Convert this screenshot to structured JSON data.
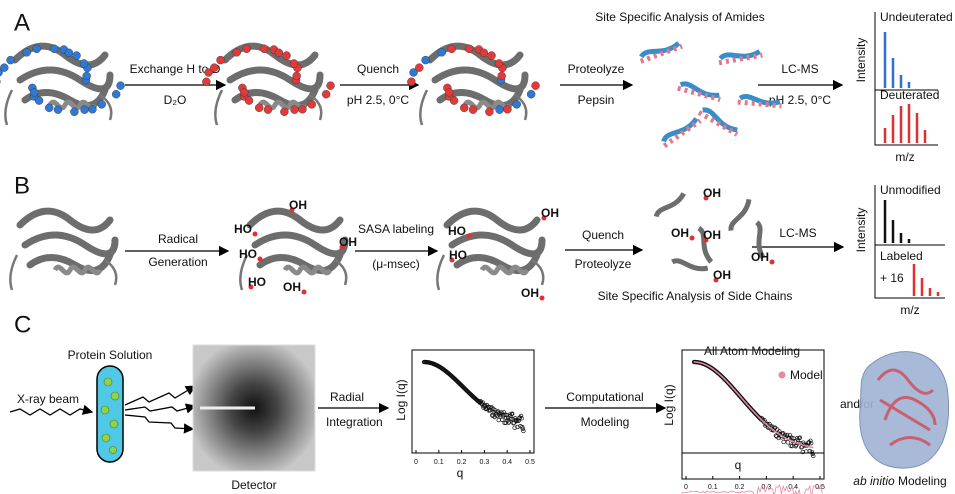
{
  "panels": {
    "A": {
      "label": "A",
      "steps": [
        {
          "top": "Exchange H to D",
          "bottom": "D₂O"
        },
        {
          "top": "Quench",
          "bottom": "pH 2.5, 0°C"
        },
        {
          "top": "Proteolyze",
          "bottom": "Pepsin"
        },
        {
          "top": "LC-MS",
          "bottom": "pH 2.5, 0°C"
        }
      ],
      "caption": "Site Specific Analysis of Amides",
      "spectrum": {
        "top": "Undeuterated",
        "bottom": "Deuterated",
        "y_label": "Intensity",
        "x_label": "m/z"
      }
    },
    "B": {
      "label": "B",
      "steps": [
        {
          "top": "Radical",
          "bottom": "Generation"
        },
        {
          "top": "SASA labeling",
          "bottom": "(μ-msec)"
        },
        {
          "top": "Quench",
          "bottom": "Proteolyze"
        },
        {
          "top": "LC-MS"
        }
      ],
      "caption": "Site Specific Analysis of Side Chains",
      "hydroxyls": [
        "OH",
        "HO",
        "OH",
        "HO",
        "HO",
        "OH",
        "OH",
        "HO",
        "HO",
        "OH",
        "OH",
        "OH",
        "OH",
        "OH",
        "OH"
      ],
      "spectrum": {
        "top": "Unmodified",
        "bottom": "Labeled",
        "shift": "+ 16",
        "y_label": "Intensity",
        "x_label": "m/z"
      }
    },
    "C": {
      "label": "C",
      "beam": "X-ray beam",
      "sample": "Protein Solution",
      "detector": "Detector",
      "steps": [
        {
          "top": "Radial",
          "bottom": "Integration"
        },
        {
          "top": "Computational",
          "bottom": "Modeling"
        }
      ],
      "plot1": {
        "y_label": "Log I(q)",
        "x_label": "q",
        "xticks": [
          0,
          0.1,
          0.2,
          0.3,
          0.4,
          0.5
        ]
      },
      "plot2": {
        "title": "All Atom Modeling",
        "legend": "Model",
        "y_label": "Log I(q)",
        "x_label": "q",
        "xticks": [
          0,
          0.1,
          0.2,
          0.3,
          0.4,
          0.5
        ]
      },
      "connector": "and/or",
      "ab_initio": {
        "italic": "ab initio",
        "rest": " Modeling"
      }
    }
  }
}
